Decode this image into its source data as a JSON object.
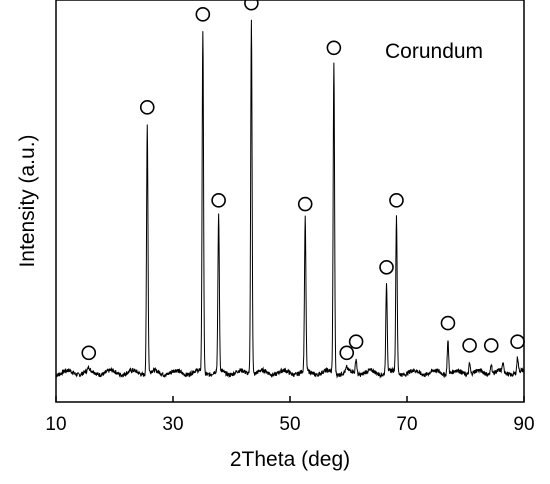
{
  "chart_data": {
    "type": "line",
    "title": "",
    "xlabel": "2Theta (deg)",
    "ylabel": "Intensity (a.u.)",
    "xlim": [
      10,
      90
    ],
    "x_ticks": [
      10,
      30,
      50,
      70,
      90
    ],
    "y_ticks_shown": false,
    "grid": false,
    "legend_text": "Corundum",
    "legend_placement": "top-right",
    "line_color": "#000000",
    "baseline": 0.02,
    "ylim": [
      0,
      1.0
    ],
    "peaks": [
      {
        "x": 15.6,
        "y": 0.03
      },
      {
        "x": 25.6,
        "y": 0.69
      },
      {
        "x": 35.1,
        "y": 0.94
      },
      {
        "x": 37.8,
        "y": 0.44
      },
      {
        "x": 43.4,
        "y": 0.97
      },
      {
        "x": 52.6,
        "y": 0.43
      },
      {
        "x": 57.5,
        "y": 0.85
      },
      {
        "x": 59.7,
        "y": 0.03
      },
      {
        "x": 61.3,
        "y": 0.06
      },
      {
        "x": 66.5,
        "y": 0.26
      },
      {
        "x": 68.2,
        "y": 0.44
      },
      {
        "x": 77.0,
        "y": 0.11
      },
      {
        "x": 80.7,
        "y": 0.05
      },
      {
        "x": 84.4,
        "y": 0.05
      },
      {
        "x": 86.4,
        "y": 0.04
      },
      {
        "x": 88.9,
        "y": 0.06
      }
    ],
    "markers": [
      {
        "symbol": "O",
        "x": 15.6
      },
      {
        "symbol": "O",
        "x": 25.6
      },
      {
        "symbol": "O",
        "x": 35.1
      },
      {
        "symbol": "O",
        "x": 37.8
      },
      {
        "symbol": "O",
        "x": 43.4
      },
      {
        "symbol": "O",
        "x": 52.6
      },
      {
        "symbol": "O",
        "x": 57.5
      },
      {
        "symbol": "O",
        "x": 59.7
      },
      {
        "symbol": "O",
        "x": 61.3
      },
      {
        "symbol": "O",
        "x": 66.5
      },
      {
        "symbol": "O",
        "x": 68.2
      },
      {
        "symbol": "O",
        "x": 77.0
      },
      {
        "symbol": "O",
        "x": 80.7
      },
      {
        "symbol": "O",
        "x": 84.4
      },
      {
        "symbol": "O",
        "x": 88.9
      }
    ]
  }
}
